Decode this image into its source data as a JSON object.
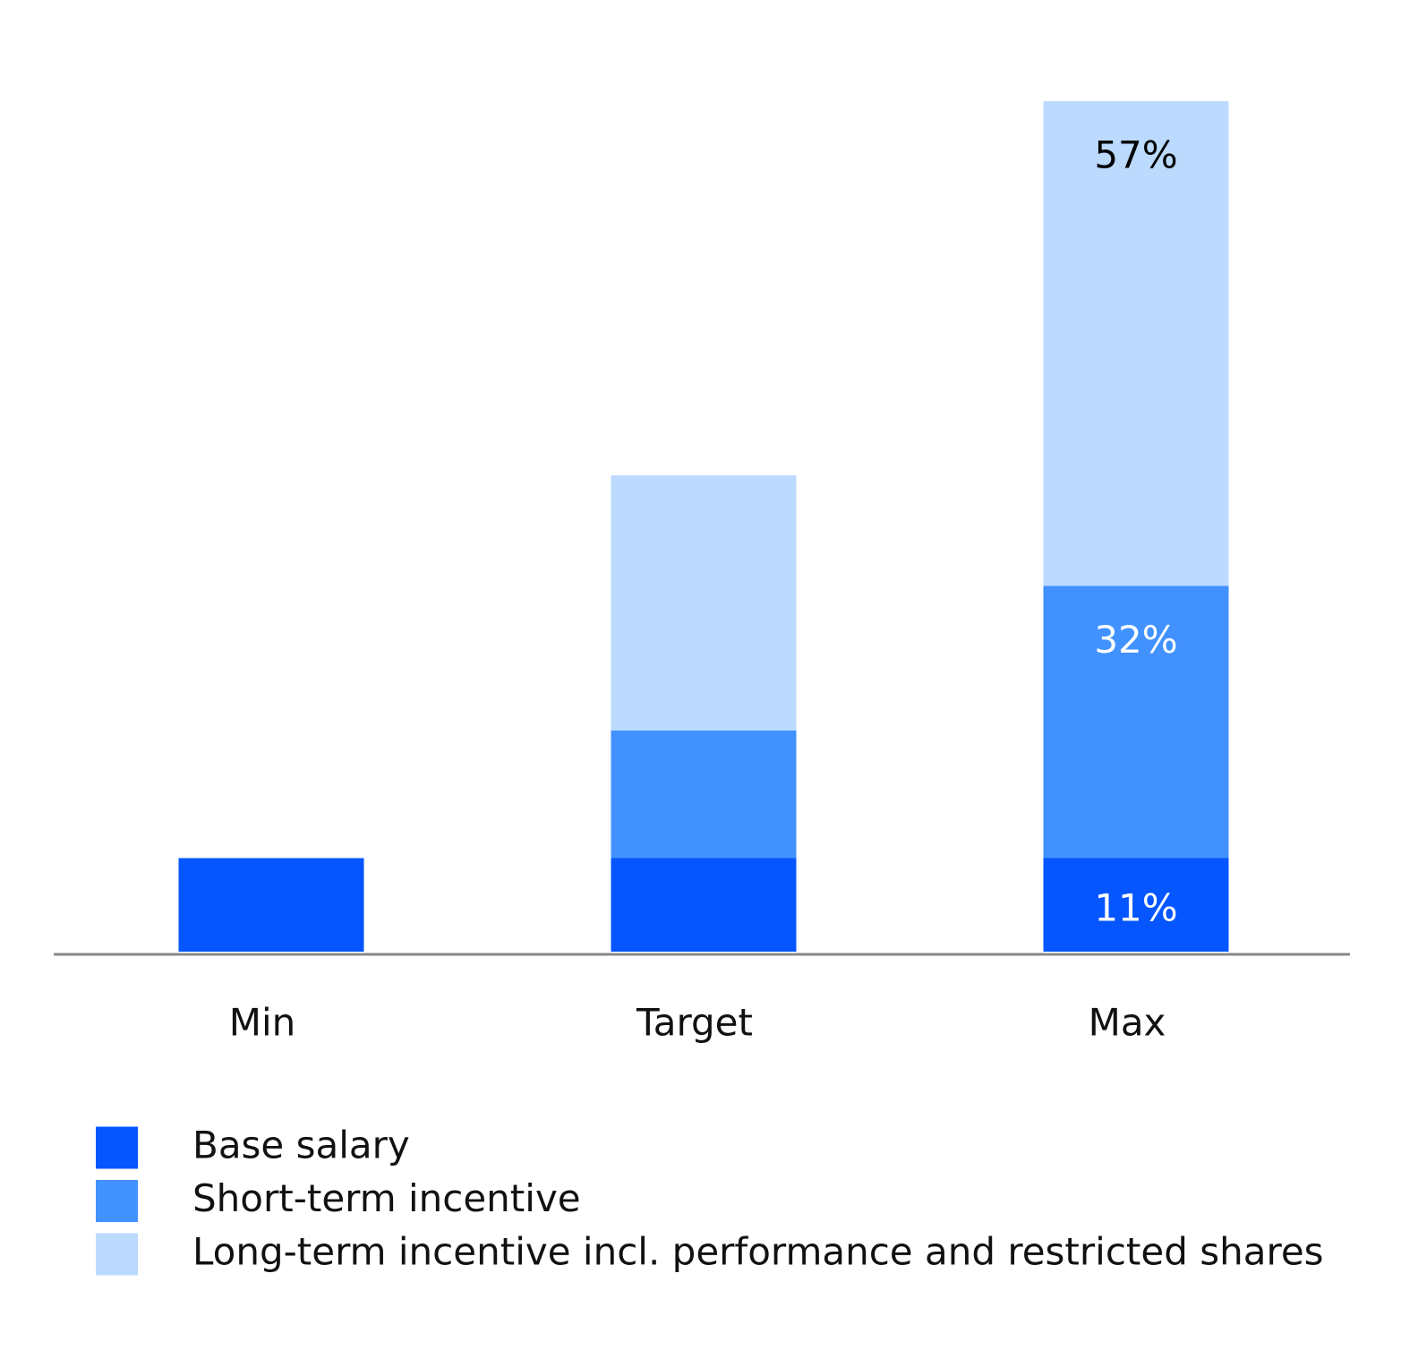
{
  "chart_data": {
    "type": "stacked_bar",
    "categories": [
      "Min",
      "Target",
      "Max"
    ],
    "ylim": [
      0,
      100
    ],
    "series": [
      {
        "name": "Base salary",
        "color": "#0556ff",
        "label_color": "#ffffff",
        "values": [
          11,
          11,
          11
        ],
        "value_labels": [
          null,
          null,
          "11%"
        ]
      },
      {
        "name": "Short-term incentive",
        "color": "#4192ff",
        "label_color": "#ffffff",
        "values": [
          null,
          15,
          32
        ],
        "value_labels": [
          null,
          null,
          "32%"
        ]
      },
      {
        "name": "Long-term incentive incl. performance and restricted shares",
        "color": "#bbdafe",
        "label_color": "#000000",
        "values": [
          null,
          30,
          57
        ],
        "value_labels": [
          null,
          null,
          "57%"
        ]
      }
    ]
  }
}
